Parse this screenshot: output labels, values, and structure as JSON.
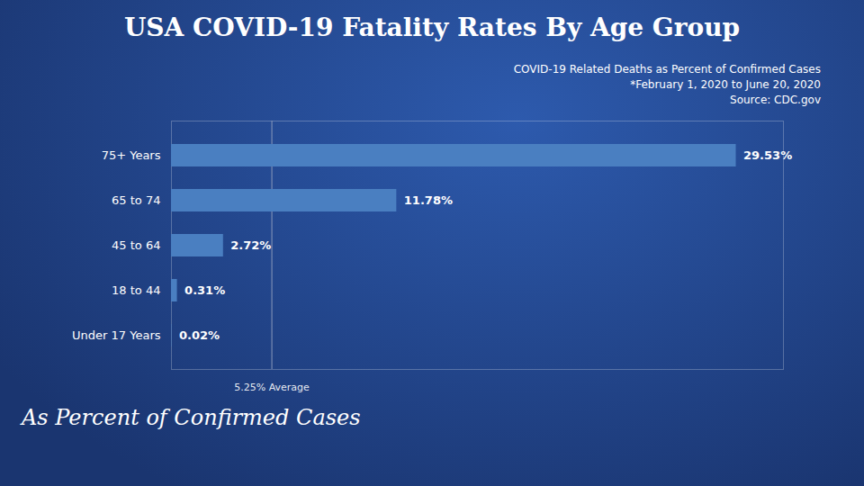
{
  "chart_data": {
    "type": "bar",
    "orientation": "horizontal",
    "title": "USA COVID-19 Fatality Rates By Age Group",
    "subtitle": [
      "COVID-19 Related Deaths as Percent of Confirmed Cases",
      "*February 1, 2020 to June 20, 2020",
      "Source: CDC.gov"
    ],
    "caption": "As Percent of Confirmed Cases",
    "categories": [
      "Under 17 Years",
      "18 to 44",
      "45 to 64",
      "65 to 74",
      "75+ Years"
    ],
    "values": [
      0.02,
      0.31,
      2.72,
      11.78,
      29.53
    ],
    "value_labels": [
      "0.02%",
      "0.31%",
      "2.72%",
      "11.78%",
      "29.53%"
    ],
    "data_labels": true,
    "color": "#4a7fc1",
    "average": {
      "value": 5.25,
      "label": "5.25% Average",
      "color": "#8899bb"
    },
    "xlim": [
      0,
      32
    ],
    "tick_labels": "y",
    "grid": false
  }
}
